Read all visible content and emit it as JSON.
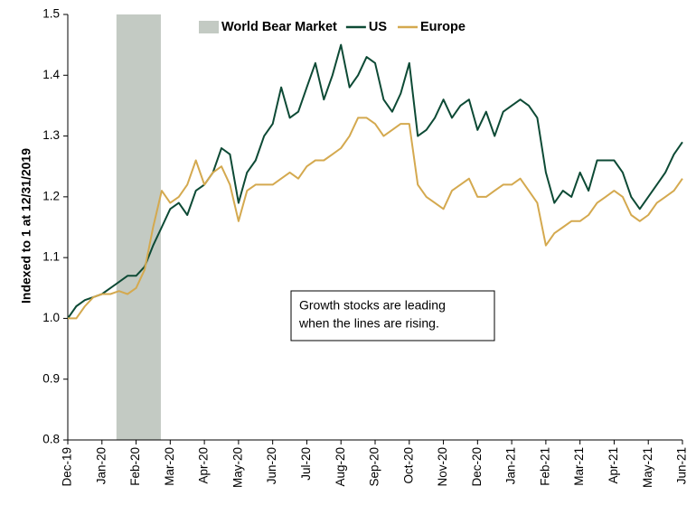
{
  "chart_data": {
    "type": "line",
    "y_label": "Indexed to 1 at 12/31/2019",
    "categories": [
      "Dec-19",
      null,
      null,
      null,
      "Jan-20",
      null,
      null,
      null,
      "Feb-20",
      null,
      null,
      null,
      "Mar-20",
      null,
      null,
      null,
      "Apr-20",
      null,
      null,
      null,
      "May-20",
      null,
      null,
      null,
      "Jun-20",
      null,
      null,
      null,
      "Jul-20",
      null,
      null,
      null,
      "Aug-20",
      null,
      null,
      null,
      "Sep-20",
      null,
      null,
      null,
      "Oct-20",
      null,
      null,
      null,
      "Nov-20",
      null,
      null,
      null,
      "Dec-20",
      null,
      null,
      null,
      "Jan-21",
      null,
      null,
      null,
      "Feb-21",
      null,
      null,
      null,
      "Mar-21",
      null,
      null,
      null,
      "Apr-21",
      null,
      null,
      null,
      "May-21",
      null,
      null,
      null,
      "Jun-21"
    ],
    "series": [
      {
        "name": "US",
        "color": "#0d4a35",
        "values": [
          1.0,
          1.02,
          1.03,
          1.035,
          1.04,
          1.05,
          1.06,
          1.07,
          1.07,
          1.085,
          1.12,
          1.15,
          1.18,
          1.19,
          1.17,
          1.21,
          1.22,
          1.24,
          1.28,
          1.27,
          1.19,
          1.24,
          1.26,
          1.3,
          1.32,
          1.38,
          1.33,
          1.34,
          1.38,
          1.42,
          1.36,
          1.4,
          1.45,
          1.38,
          1.4,
          1.43,
          1.42,
          1.36,
          1.34,
          1.37,
          1.42,
          1.3,
          1.31,
          1.33,
          1.36,
          1.33,
          1.35,
          1.36,
          1.31,
          1.34,
          1.3,
          1.34,
          1.35,
          1.36,
          1.35,
          1.33,
          1.24,
          1.19,
          1.21,
          1.2,
          1.24,
          1.21,
          1.26,
          1.26,
          1.26,
          1.24,
          1.2,
          1.18,
          1.2,
          1.22,
          1.24,
          1.27,
          1.29
        ]
      },
      {
        "name": "Europe",
        "color": "#d4a94f",
        "values": [
          1.0,
          1.0,
          1.02,
          1.035,
          1.04,
          1.04,
          1.045,
          1.04,
          1.05,
          1.08,
          1.15,
          1.21,
          1.19,
          1.2,
          1.22,
          1.26,
          1.22,
          1.24,
          1.25,
          1.22,
          1.16,
          1.21,
          1.22,
          1.22,
          1.22,
          1.23,
          1.24,
          1.23,
          1.25,
          1.26,
          1.26,
          1.27,
          1.28,
          1.3,
          1.33,
          1.33,
          1.32,
          1.3,
          1.31,
          1.32,
          1.32,
          1.22,
          1.2,
          1.19,
          1.18,
          1.21,
          1.22,
          1.23,
          1.2,
          1.2,
          1.21,
          1.22,
          1.22,
          1.23,
          1.21,
          1.19,
          1.12,
          1.14,
          1.15,
          1.16,
          1.16,
          1.17,
          1.19,
          1.2,
          1.21,
          1.2,
          1.17,
          1.16,
          1.17,
          1.19,
          1.2,
          1.21,
          1.23
        ]
      }
    ],
    "shade": {
      "name": "World Bear Market",
      "color": "#c3cac3",
      "from": 5.7,
      "to": 10.9
    },
    "ylim": [
      0.8,
      1.5
    ],
    "yticks": [
      0.8,
      0.9,
      {
        "value": 1,
        "label": "1.0"
      },
      1.1,
      1.2,
      1.3,
      1.4,
      1.5
    ],
    "annotation": [
      "Growth stocks are leading",
      "when the lines are rising."
    ],
    "grid": false
  }
}
